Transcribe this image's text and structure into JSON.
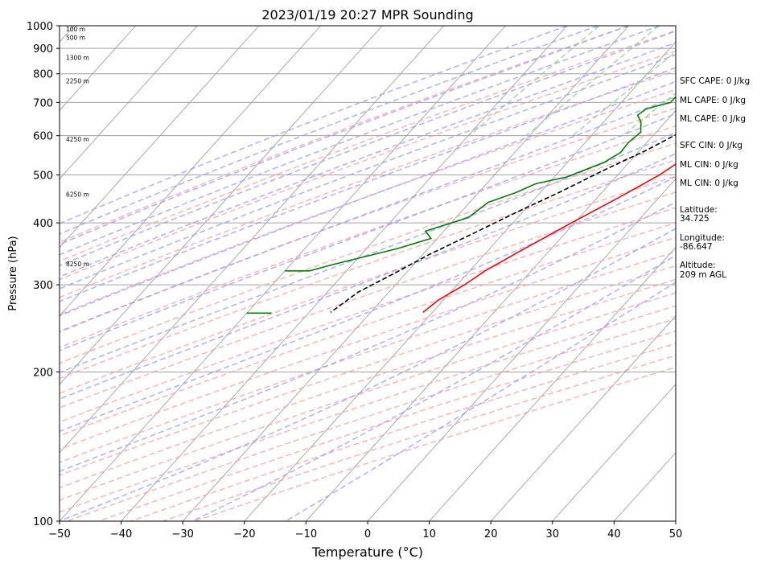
{
  "chart_data": {
    "type": "line",
    "subtype": "skew-t",
    "title": "2023/01/19 20:27 MPR Sounding",
    "xlabel": "Temperature (°C)",
    "ylabel": "Pressure (hPa)",
    "xlim": [
      -50,
      50
    ],
    "ylim": [
      1000,
      100
    ],
    "y_scale": "log",
    "x_ticks": [
      "−50",
      "−40",
      "−30",
      "−20",
      "−10",
      "0",
      "10",
      "20",
      "30",
      "40",
      "50"
    ],
    "x_tick_values": [
      -50,
      -40,
      -30,
      -20,
      -10,
      0,
      10,
      20,
      30,
      40,
      50
    ],
    "y_ticks": [
      "100",
      "200",
      "300",
      "400",
      "500",
      "600",
      "700",
      "800",
      "900",
      "1000"
    ],
    "y_tick_values": [
      100,
      200,
      300,
      400,
      500,
      600,
      700,
      800,
      900,
      1000
    ],
    "grid": true,
    "colors": {
      "temperature": "#ff0000",
      "dewpoint": "#008000",
      "parcel": "#000000",
      "isotherm": "#a0a0a0",
      "dry_adiabat": "#ff9a9a",
      "moist_adiabat": "#9a9aff",
      "mixing_ratio": "#8cc98c"
    },
    "series": [
      {
        "id": "temperature",
        "points": [
          [
            20.8,
            990
          ],
          [
            19.2,
            975
          ],
          [
            16,
            950
          ],
          [
            12,
            925
          ],
          [
            9,
            900
          ],
          [
            6.8,
            875
          ],
          [
            6,
            850
          ],
          [
            5.6,
            800
          ],
          [
            5,
            750
          ],
          [
            4.5,
            700
          ],
          [
            3.2,
            650
          ],
          [
            1.6,
            600
          ],
          [
            -1.2,
            550
          ],
          [
            -3.2,
            500
          ],
          [
            -6.5,
            450
          ],
          [
            -10.5,
            400
          ],
          [
            -14.8,
            350
          ],
          [
            -17.5,
            320
          ],
          [
            -18.8,
            300
          ],
          [
            -20.8,
            280
          ],
          [
            -21.5,
            264
          ]
        ]
      },
      {
        "id": "dewpoint",
        "points": [
          [
            -1.5,
            990
          ],
          [
            -3.5,
            975
          ],
          [
            -4,
            960
          ],
          [
            -2.5,
            940
          ],
          [
            -1.5,
            910
          ],
          [
            -3,
            880
          ],
          [
            -6,
            850
          ],
          [
            -8,
            840
          ],
          [
            -8.5,
            825
          ],
          [
            -10,
            820
          ],
          [
            -10,
            805
          ],
          [
            -10.5,
            795
          ],
          [
            -10,
            785
          ],
          [
            -11,
            760
          ],
          [
            -11,
            735
          ],
          [
            -12,
            725
          ],
          [
            -12,
            700
          ],
          [
            -15,
            680
          ],
          [
            -15.5,
            660
          ],
          [
            -14,
            640
          ],
          [
            -12.5,
            610
          ],
          [
            -13,
            580
          ],
          [
            -12.8,
            555
          ],
          [
            -14,
            530
          ],
          [
            -18,
            495
          ],
          [
            -22,
            480
          ],
          [
            -24,
            460
          ],
          [
            -27,
            440
          ],
          [
            -28,
            410
          ],
          [
            -33,
            385
          ],
          [
            -31,
            372
          ],
          [
            -35,
            355
          ],
          [
            -43,
            330
          ],
          [
            -46,
            320
          ],
          [
            -50,
            320
          ]
        ]
      },
      {
        "id": "dewpoint-upper",
        "points": [
          [
            -50,
            263
          ],
          [
            -46,
            263
          ]
        ]
      },
      {
        "id": "parcel",
        "points": [
          [
            20.8,
            990
          ],
          [
            15,
            920
          ],
          [
            10.5,
            860
          ],
          [
            6.5,
            810
          ],
          [
            3.5,
            775
          ],
          [
            0.5,
            740
          ],
          [
            -0.5,
            715
          ],
          [
            -2,
            690
          ],
          [
            -4,
            650
          ],
          [
            -6,
            610
          ],
          [
            -9,
            560
          ],
          [
            -13,
            510
          ],
          [
            -17,
            460
          ],
          [
            -21,
            420
          ],
          [
            -25,
            380
          ],
          [
            -29,
            345
          ],
          [
            -32,
            315
          ],
          [
            -35,
            290
          ],
          [
            -36.5,
            264
          ]
        ]
      }
    ],
    "height_labels": [
      {
        "label": "8250 m",
        "p": 331
      },
      {
        "label": "6250 m",
        "p": 457
      },
      {
        "label": "4250 m",
        "p": 590
      },
      {
        "label": "2250 m",
        "p": 774
      },
      {
        "label": "1300 m",
        "p": 862
      },
      {
        "label": "500 m",
        "p": 947
      },
      {
        "label": "100 m",
        "p": 986
      }
    ],
    "stats": [
      "SFC CAPE: 0 J/kg",
      "ML CAPE: 0 J/kg",
      "ML CAPE: 0 J/kg",
      "SFC CIN: 0 J/kg",
      "ML CIN: 0 J/kg",
      "ML CIN: 0 J/kg",
      "Latitude:",
      "34.725",
      "Longitude:",
      "-86.647",
      "Altitude:",
      "209 m AGL"
    ]
  }
}
